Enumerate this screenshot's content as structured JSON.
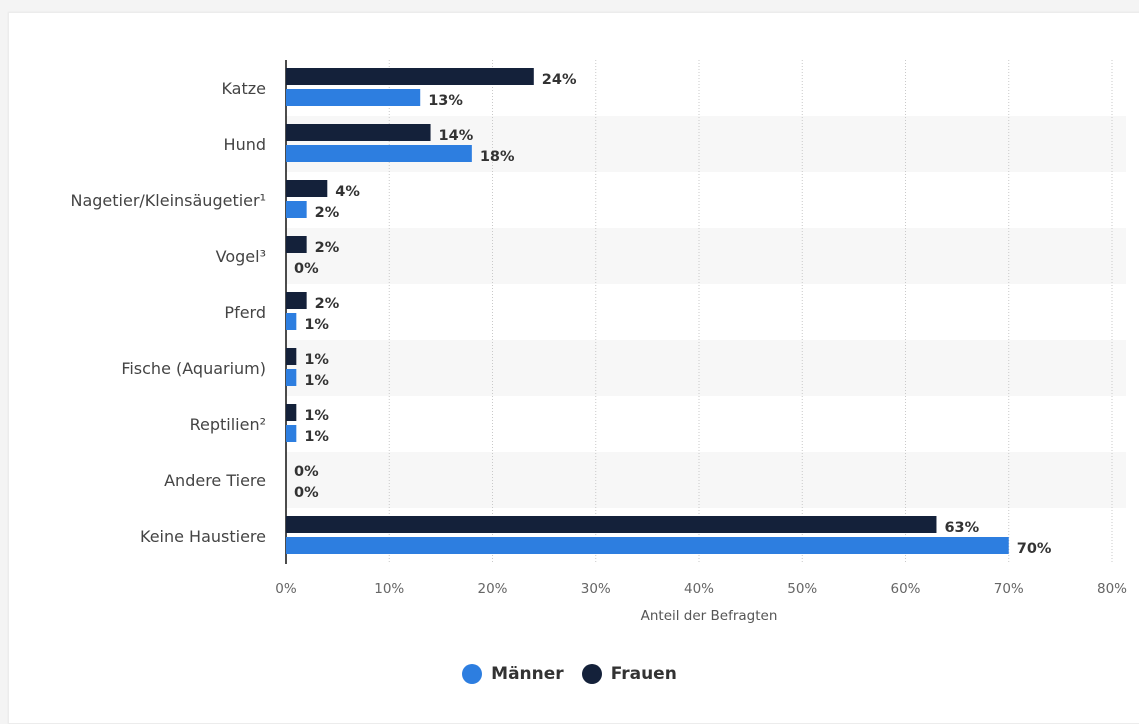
{
  "chart_data": {
    "type": "bar",
    "orientation": "horizontal",
    "categories": [
      "Katze",
      "Hund",
      "Nagetier/Kleinsäugetier¹",
      "Vogel³",
      "Pferd",
      "Fische (Aquarium)",
      "Reptilien²",
      "Andere Tiere",
      "Keine Haustiere"
    ],
    "series": [
      {
        "name": "Frauen",
        "color": "#14213a",
        "values": [
          24,
          14,
          4,
          2,
          2,
          1,
          1,
          0,
          63
        ],
        "labels": [
          "24%",
          "14%",
          "4%",
          "2%",
          "2%",
          "1%",
          "1%",
          "0%",
          "63%"
        ]
      },
      {
        "name": "Männer",
        "color": "#2d7ee0",
        "values": [
          13,
          18,
          2,
          0,
          1,
          1,
          1,
          0,
          70
        ],
        "labels": [
          "13%",
          "18%",
          "2%",
          "0%",
          "1%",
          "1%",
          "1%",
          "0%",
          "70%"
        ]
      }
    ],
    "xlabel": "Anteil der Befragten",
    "xlim": [
      0,
      80
    ],
    "xticks": [
      "0%",
      "10%",
      "20%",
      "30%",
      "40%",
      "50%",
      "60%",
      "70%",
      "80%"
    ],
    "grid": true,
    "legend_position": "bottom-center",
    "legend": [
      "Männer",
      "Frauen"
    ]
  },
  "legend": {
    "items": [
      {
        "label": "Männer",
        "color": "#2d7ee0"
      },
      {
        "label": "Frauen",
        "color": "#14213a"
      }
    ]
  }
}
